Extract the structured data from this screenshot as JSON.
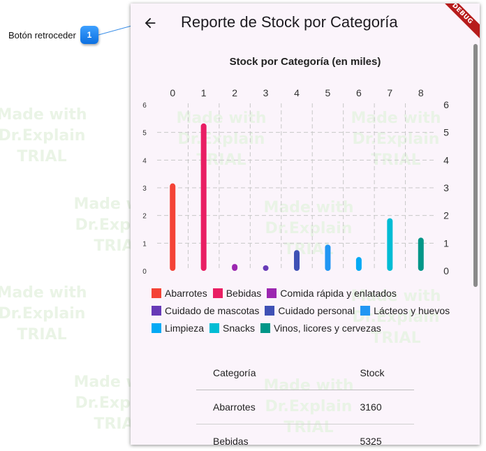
{
  "callout": {
    "label": "Botón retroceder",
    "number": "1"
  },
  "watermark": {
    "lines": [
      "Made with",
      "Dr.Explain",
      "TRIAL"
    ]
  },
  "appbar": {
    "title": "Reporte de Stock por Categoría",
    "debug_label": "DEBUG"
  },
  "chart_data": {
    "type": "bar",
    "title": "Stock por Categoría (en miles)",
    "categories": [
      "0",
      "1",
      "2",
      "3",
      "4",
      "5",
      "6",
      "7",
      "8"
    ],
    "values": [
      3.16,
      5.325,
      0.25,
      0.2,
      0.75,
      0.95,
      0.5,
      1.9,
      1.2
    ],
    "ylim": [
      0,
      6
    ],
    "yticks": [
      "0",
      "1",
      "2",
      "3",
      "4",
      "5",
      "6"
    ],
    "grid": true,
    "legend_position": "bottom",
    "series_colors": [
      "#f44336",
      "#e91e63",
      "#9c27b0",
      "#673ab7",
      "#3f51b5",
      "#2196f3",
      "#03a9f4",
      "#00bcd4",
      "#009688"
    ]
  },
  "legend": {
    "rows": [
      [
        {
          "label": "Abarrotes",
          "color": "#f44336"
        },
        {
          "label": "Bebidas",
          "color": "#e91e63"
        },
        {
          "label": "Comida rápida y enlatados",
          "color": "#9c27b0"
        }
      ],
      [
        {
          "label": "Cuidado de mascotas",
          "color": "#673ab7"
        },
        {
          "label": "Cuidado personal",
          "color": "#3f51b5"
        },
        {
          "label": "Lácteos y huevos",
          "color": "#2196f3"
        }
      ],
      [
        {
          "label": "Limpieza",
          "color": "#03a9f4"
        },
        {
          "label": "Snacks",
          "color": "#00bcd4"
        },
        {
          "label": "Vinos, licores y cervezas",
          "color": "#009688"
        }
      ]
    ]
  },
  "table": {
    "headers": [
      "Categoría",
      "Stock"
    ],
    "rows": [
      [
        "Abarrotes",
        "3160"
      ],
      [
        "Bebidas",
        "5325"
      ]
    ]
  }
}
